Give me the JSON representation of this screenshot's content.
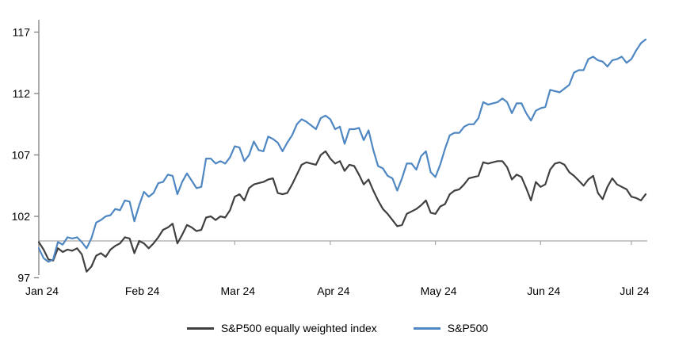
{
  "colors": {
    "equal_weight_line": "#404040",
    "sp500_line": "#4e87c1",
    "axis": "#808080",
    "baseline": "#a6a6a6",
    "text": "#000000",
    "background": "#ffffff"
  },
  "legend": {
    "items": [
      {
        "label": "S&P500 equally weighted index",
        "color": "#404040"
      },
      {
        "label": "S&P500",
        "color": "#4e87c1"
      }
    ]
  },
  "chart_data": {
    "type": "line",
    "title": "",
    "xlabel": "",
    "ylabel": "",
    "ylim": [
      97,
      117
    ],
    "y_ticks": [
      97,
      102,
      107,
      112,
      117
    ],
    "baseline_value": 100,
    "grid": false,
    "legend_position": "bottom",
    "x_tick_labels": [
      "Jan 24",
      "Feb 24",
      "Mar 24",
      "Apr 24",
      "May 24",
      "Jun 24",
      "Jul 24"
    ],
    "x_tick_indices": [
      0,
      21,
      41,
      61,
      83,
      105,
      124
    ],
    "x": [
      "2024-01-02",
      "2024-01-03",
      "2024-01-04",
      "2024-01-05",
      "2024-01-08",
      "2024-01-09",
      "2024-01-10",
      "2024-01-11",
      "2024-01-12",
      "2024-01-16",
      "2024-01-17",
      "2024-01-18",
      "2024-01-19",
      "2024-01-22",
      "2024-01-23",
      "2024-01-24",
      "2024-01-25",
      "2024-01-26",
      "2024-01-29",
      "2024-01-30",
      "2024-01-31",
      "2024-02-01",
      "2024-02-02",
      "2024-02-05",
      "2024-02-06",
      "2024-02-07",
      "2024-02-08",
      "2024-02-09",
      "2024-02-12",
      "2024-02-13",
      "2024-02-14",
      "2024-02-15",
      "2024-02-16",
      "2024-02-20",
      "2024-02-21",
      "2024-02-22",
      "2024-02-23",
      "2024-02-26",
      "2024-02-27",
      "2024-02-28",
      "2024-02-29",
      "2024-03-01",
      "2024-03-04",
      "2024-03-05",
      "2024-03-06",
      "2024-03-07",
      "2024-03-08",
      "2024-03-11",
      "2024-03-12",
      "2024-03-13",
      "2024-03-14",
      "2024-03-15",
      "2024-03-18",
      "2024-03-19",
      "2024-03-20",
      "2024-03-21",
      "2024-03-22",
      "2024-03-25",
      "2024-03-26",
      "2024-03-27",
      "2024-03-28",
      "2024-04-01",
      "2024-04-02",
      "2024-04-03",
      "2024-04-04",
      "2024-04-05",
      "2024-04-08",
      "2024-04-09",
      "2024-04-10",
      "2024-04-11",
      "2024-04-12",
      "2024-04-15",
      "2024-04-16",
      "2024-04-17",
      "2024-04-18",
      "2024-04-19",
      "2024-04-22",
      "2024-04-23",
      "2024-04-24",
      "2024-04-25",
      "2024-04-26",
      "2024-04-29",
      "2024-04-30",
      "2024-05-01",
      "2024-05-02",
      "2024-05-03",
      "2024-05-06",
      "2024-05-07",
      "2024-05-08",
      "2024-05-09",
      "2024-05-10",
      "2024-05-13",
      "2024-05-14",
      "2024-05-15",
      "2024-05-16",
      "2024-05-17",
      "2024-05-20",
      "2024-05-21",
      "2024-05-22",
      "2024-05-23",
      "2024-05-24",
      "2024-05-28",
      "2024-05-29",
      "2024-05-30",
      "2024-05-31",
      "2024-06-03",
      "2024-06-04",
      "2024-06-05",
      "2024-06-06",
      "2024-06-07",
      "2024-06-10",
      "2024-06-11",
      "2024-06-12",
      "2024-06-13",
      "2024-06-14",
      "2024-06-17",
      "2024-06-18",
      "2024-06-20",
      "2024-06-21",
      "2024-06-24",
      "2024-06-25",
      "2024-06-26",
      "2024-06-27",
      "2024-06-28",
      "2024-07-01",
      "2024-07-02",
      "2024-07-03",
      "2024-07-05"
    ],
    "series": [
      {
        "name": "S&P500 equally weighted index",
        "color": "#404040",
        "values": [
          99.9,
          99.3,
          98.5,
          98.4,
          99.4,
          99.1,
          99.3,
          99.2,
          99.4,
          98.9,
          97.5,
          97.9,
          98.8,
          99.0,
          98.7,
          99.3,
          99.6,
          99.8,
          100.3,
          100.2,
          99.0,
          100.0,
          99.8,
          99.4,
          99.8,
          100.3,
          100.9,
          101.1,
          101.4,
          99.8,
          100.5,
          101.3,
          101.1,
          100.8,
          100.9,
          101.9,
          102.0,
          101.7,
          102.0,
          101.9,
          102.5,
          103.6,
          103.8,
          103.3,
          104.3,
          104.6,
          104.7,
          104.8,
          105.0,
          105.1,
          103.9,
          103.8,
          103.9,
          104.6,
          105.4,
          106.2,
          106.4,
          106.3,
          106.2,
          107.0,
          107.3,
          106.7,
          106.3,
          106.5,
          105.7,
          106.2,
          106.1,
          105.4,
          104.6,
          105.0,
          104.1,
          103.3,
          102.6,
          102.2,
          101.7,
          101.2,
          101.3,
          102.2,
          102.4,
          102.6,
          102.9,
          103.3,
          102.3,
          102.2,
          102.8,
          103.0,
          103.8,
          104.1,
          104.2,
          104.6,
          105.1,
          105.2,
          105.3,
          106.4,
          106.3,
          106.4,
          106.5,
          106.5,
          106.0,
          105.0,
          105.4,
          105.2,
          104.3,
          103.3,
          104.8,
          104.4,
          104.6,
          105.8,
          106.3,
          106.4,
          106.2,
          105.6,
          105.3,
          104.9,
          104.5,
          105.0,
          105.3,
          103.9,
          103.4,
          104.4,
          105.1,
          104.6,
          104.4,
          104.2,
          103.6,
          103.5,
          103.3,
          103.8
        ]
      },
      {
        "name": "S&P500",
        "color": "#4e87c1",
        "values": [
          99.4,
          98.6,
          98.3,
          98.5,
          99.9,
          99.7,
          100.3,
          100.2,
          100.3,
          99.9,
          99.4,
          100.2,
          101.5,
          101.7,
          102.0,
          102.1,
          102.6,
          102.5,
          103.3,
          103.2,
          101.6,
          102.9,
          104.0,
          103.6,
          103.9,
          104.7,
          104.8,
          105.4,
          105.3,
          103.8,
          104.8,
          105.5,
          104.9,
          104.3,
          104.4,
          106.7,
          106.7,
          106.3,
          106.5,
          106.3,
          106.8,
          107.7,
          107.6,
          106.5,
          107.0,
          108.1,
          107.4,
          107.3,
          108.5,
          108.3,
          108.0,
          107.3,
          108.0,
          108.6,
          109.5,
          109.9,
          109.7,
          109.4,
          109.1,
          110.0,
          110.2,
          109.9,
          109.1,
          109.3,
          107.9,
          109.1,
          109.1,
          109.2,
          108.2,
          109.0,
          107.4,
          106.1,
          105.9,
          105.3,
          105.1,
          104.1,
          105.1,
          106.3,
          106.3,
          105.8,
          106.9,
          107.3,
          105.6,
          105.2,
          106.2,
          107.5,
          108.6,
          108.8,
          108.8,
          109.3,
          109.5,
          109.5,
          110.0,
          111.3,
          111.1,
          111.2,
          111.3,
          111.6,
          111.3,
          110.4,
          111.2,
          111.2,
          110.4,
          109.8,
          110.6,
          110.8,
          110.9,
          112.3,
          112.2,
          112.1,
          112.4,
          112.7,
          113.7,
          113.9,
          113.9,
          114.8,
          115.0,
          114.7,
          114.6,
          114.2,
          114.7,
          114.8,
          115.0,
          114.5,
          114.8,
          115.5,
          116.1,
          116.4
        ]
      }
    ]
  }
}
